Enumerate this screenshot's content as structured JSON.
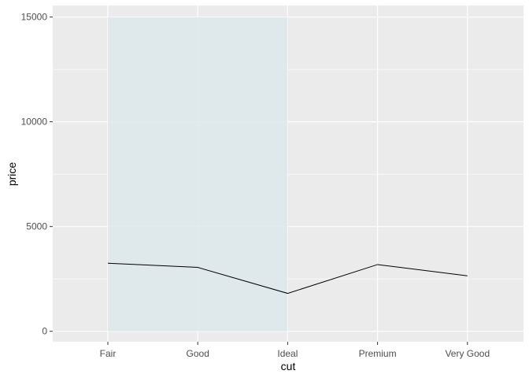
{
  "chart_data": {
    "type": "line",
    "title": "",
    "xlabel": "cut",
    "ylabel": "price",
    "categories": [
      "Fair",
      "Good",
      "Ideal",
      "Premium",
      "Very Good"
    ],
    "series": [
      {
        "values": [
          3250,
          3050,
          1810,
          3185,
          2650
        ]
      }
    ],
    "highlight_band": {
      "from_category": "Fair",
      "to_category": "Ideal",
      "y_from": 0,
      "y_to": 15000
    },
    "y_ticks": [
      0,
      5000,
      10000,
      15000
    ],
    "ylim": [
      -500,
      15550
    ],
    "grid": true,
    "legend": "none",
    "colors": {
      "panel": "#ebebeb",
      "grid": "#ffffff",
      "band": "#dde7ea",
      "line": "#000000",
      "tick": "#4d4d4d",
      "tick_mark": "#333333"
    }
  }
}
